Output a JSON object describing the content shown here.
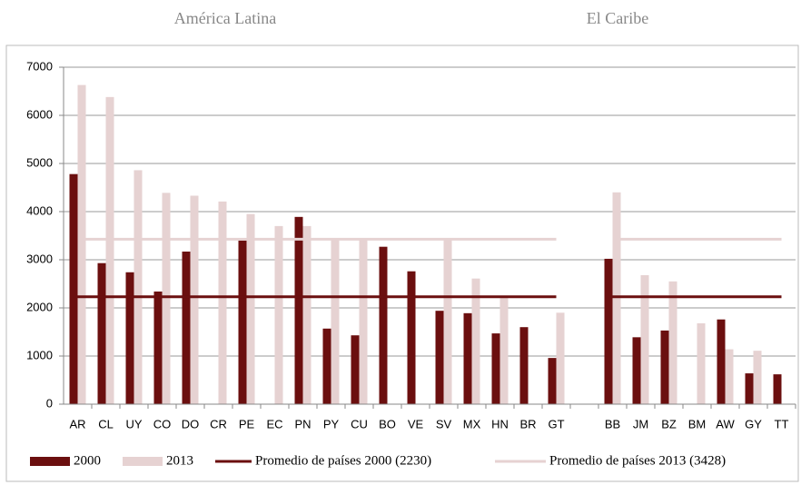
{
  "chart_data": {
    "type": "bar",
    "annotations": [
      "América Latina",
      "El Caribe"
    ],
    "categories": [
      "AR",
      "CL",
      "UY",
      "CO",
      "DO",
      "CR",
      "PE",
      "EC",
      "PN",
      "PY",
      "CU",
      "BO",
      "VE",
      "SV",
      "MX",
      "HN",
      "BR",
      "GT",
      null,
      "BB",
      "JM",
      "BZ",
      "BM",
      "AW",
      "GY",
      "TT"
    ],
    "series": [
      {
        "name": "2000",
        "type": "bar",
        "color": "#6b0f0f",
        "values": [
          4780,
          2930,
          2740,
          2340,
          3170,
          null,
          3400,
          null,
          3890,
          1570,
          1430,
          3270,
          2760,
          1940,
          1890,
          1470,
          1600,
          960,
          null,
          3020,
          1390,
          1530,
          null,
          1760,
          640,
          620
        ]
      },
      {
        "name": "2013",
        "type": "bar",
        "color": "#e6d2d2",
        "values": [
          6630,
          6380,
          4860,
          4390,
          4330,
          4210,
          3950,
          3700,
          3700,
          3420,
          3430,
          null,
          null,
          3420,
          2610,
          2250,
          null,
          1900,
          null,
          4400,
          2680,
          2550,
          1680,
          1140,
          1110,
          null
        ]
      },
      {
        "name": "Promedio de países 2000 (2230)",
        "type": "line",
        "color": "#6b0f0f",
        "values": [
          2230,
          2230,
          2230,
          2230,
          2230,
          2230,
          2230,
          2230,
          2230,
          2230,
          2230,
          2230,
          2230,
          2230,
          2230,
          2230,
          2230,
          2230,
          null,
          2230,
          2230,
          2230,
          2230,
          2230,
          2230,
          2230
        ]
      },
      {
        "name": "Promedio de países 2013 (3428)",
        "type": "line",
        "color": "#e6d2d2",
        "values": [
          3428,
          3428,
          3428,
          3428,
          3428,
          3428,
          3428,
          3428,
          3428,
          3428,
          3428,
          3428,
          3428,
          3428,
          3428,
          3428,
          3428,
          3428,
          null,
          3428,
          3428,
          3428,
          3428,
          3428,
          3428,
          3428
        ]
      }
    ],
    "ylim": [
      0,
      7000
    ],
    "yticks": [
      0,
      1000,
      2000,
      3000,
      4000,
      5000,
      6000,
      7000
    ],
    "grid": true,
    "legend": "bottom"
  }
}
